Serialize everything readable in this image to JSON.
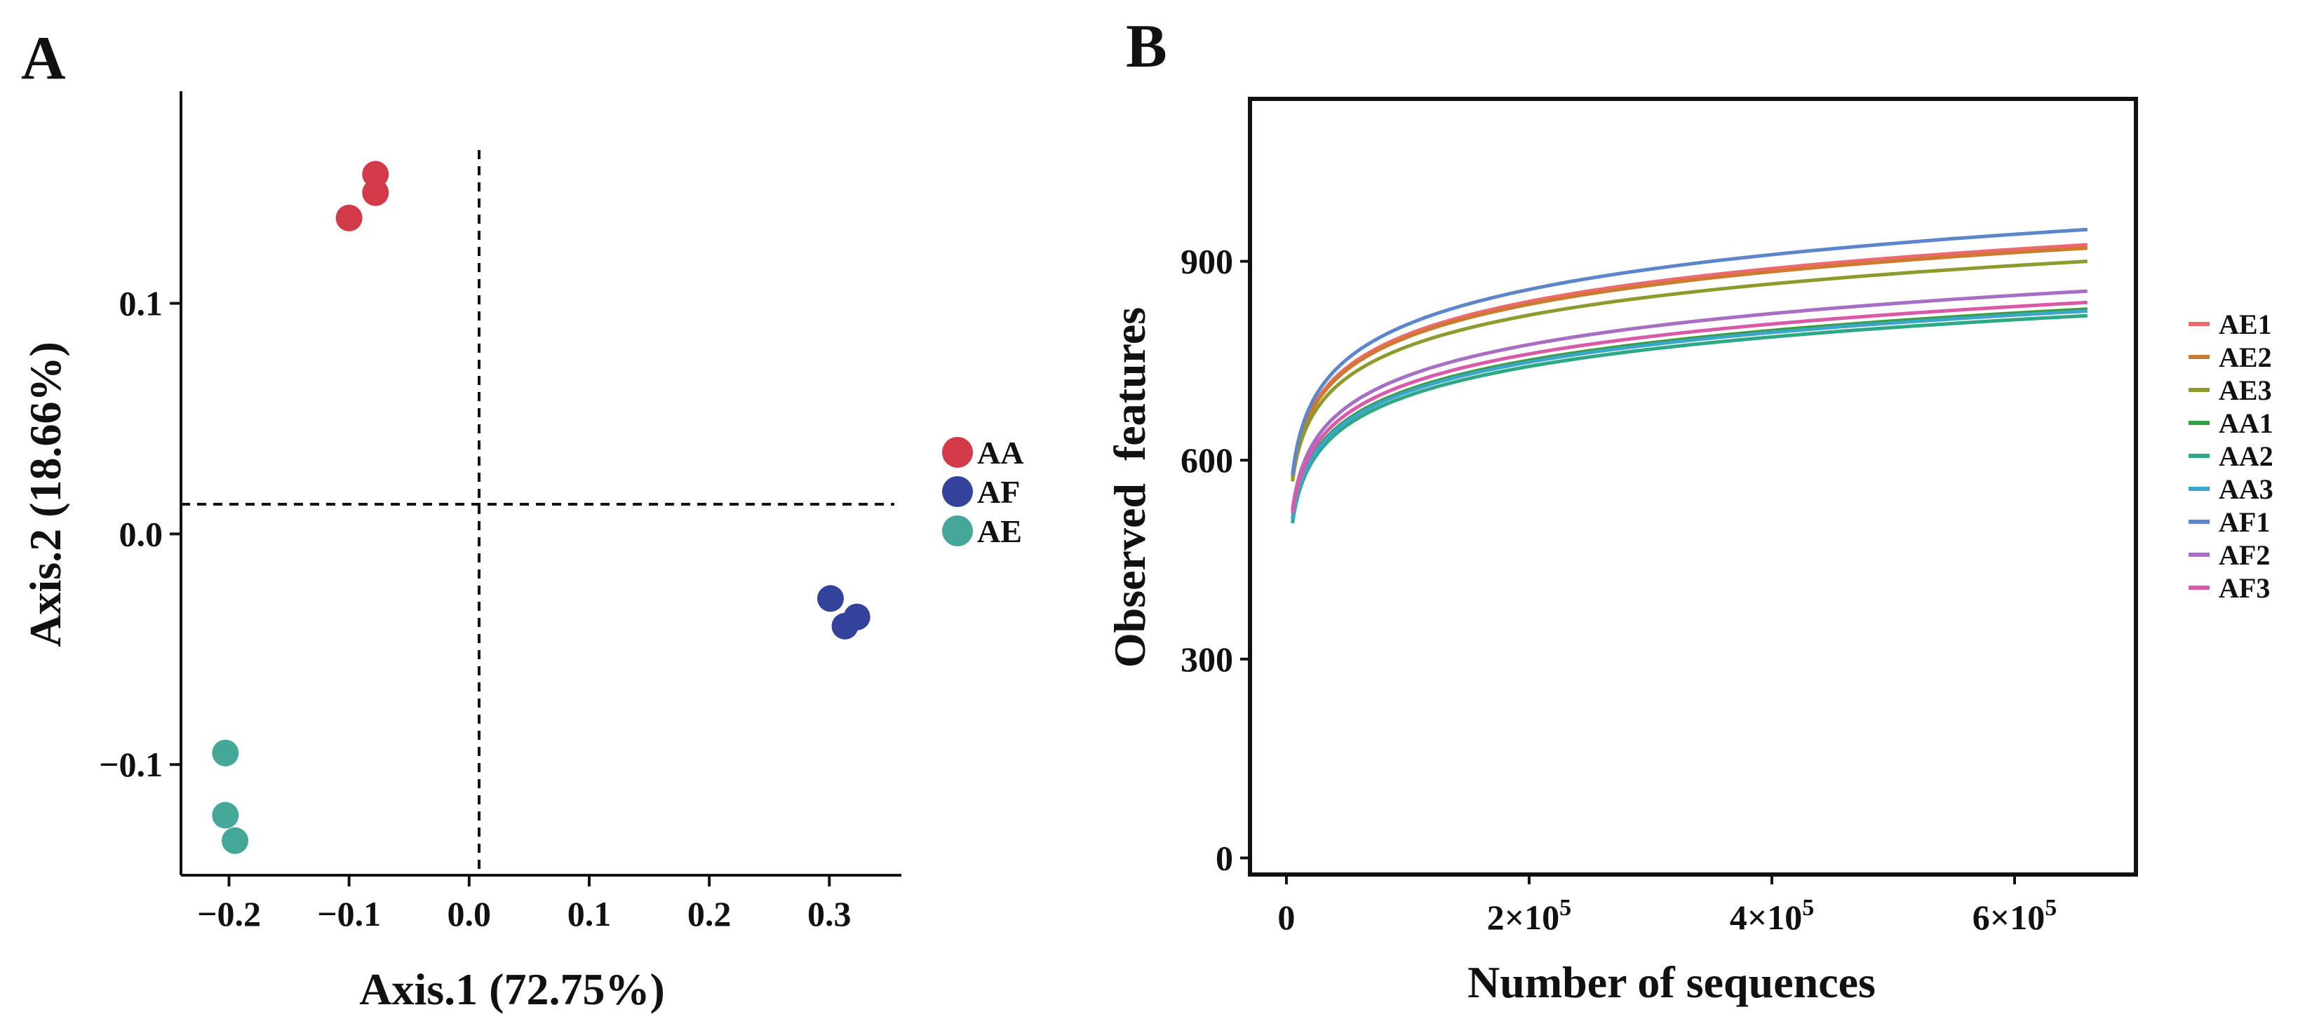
{
  "chart_data": [
    {
      "panel": "A",
      "type": "scatter",
      "xlabel": "Axis.1 (72.75%)",
      "ylabel": "Axis.2 (18.66%)",
      "xlim": [
        -0.24,
        0.36
      ],
      "ylim": [
        -0.148,
        0.192
      ],
      "xticks": [
        -0.2,
        -0.1,
        0.0,
        0.1,
        0.2,
        0.3
      ],
      "xtick_labels": [
        "−0.2",
        "−0.1",
        "0.0",
        "0.1",
        "0.2",
        "0.3"
      ],
      "yticks": [
        -0.1,
        0.0,
        0.1
      ],
      "ytick_labels": [
        "−0.1",
        "0.0",
        "0.1"
      ],
      "reference_lines": {
        "x": 0.0,
        "y": 0.0,
        "style": "dashed"
      },
      "grid": false,
      "legend_position": "right",
      "series": [
        {
          "name": "AA",
          "color": "#d23a4a",
          "points": [
            [
              -0.078,
              0.156
            ],
            [
              -0.078,
              0.148
            ],
            [
              -0.1,
              0.137
            ]
          ]
        },
        {
          "name": "AF",
          "color": "#33429a",
          "points": [
            [
              0.301,
              -0.028
            ],
            [
              0.313,
              -0.04
            ],
            [
              0.323,
              -0.036
            ]
          ]
        },
        {
          "name": "AE",
          "color": "#44a797",
          "points": [
            [
              -0.203,
              -0.095
            ],
            [
              -0.203,
              -0.122
            ],
            [
              -0.195,
              -0.133
            ]
          ]
        }
      ]
    },
    {
      "panel": "B",
      "type": "line",
      "xlabel": "Number of sequences",
      "ylabel": "Observed  features",
      "xlim": [
        -30000,
        700000
      ],
      "ylim": [
        -25,
        1145
      ],
      "xticks": [
        0,
        200000,
        400000,
        600000
      ],
      "xtick_labels": [
        {
          "base": "0",
          "exp": ""
        },
        {
          "base": "2×10",
          "exp": "5"
        },
        {
          "base": "4×10",
          "exp": "5"
        },
        {
          "base": "6×10",
          "exp": "5"
        }
      ],
      "yticks": [
        0,
        300,
        600,
        900
      ],
      "ytick_labels": [
        "0",
        "300",
        "600",
        "900"
      ],
      "grid": false,
      "legend_position": "right",
      "x_range": [
        5000,
        660000
      ],
      "series": [
        {
          "name": "AE1",
          "color": "#ec6a6f",
          "start": 575,
          "end": 925
        },
        {
          "name": "AE2",
          "color": "#cc7a2e",
          "start": 573,
          "end": 920
        },
        {
          "name": "AE3",
          "color": "#8e9a2e",
          "start": 568,
          "end": 900
        },
        {
          "name": "AA1",
          "color": "#3a9c43",
          "start": 512,
          "end": 828
        },
        {
          "name": "AA2",
          "color": "#2ea886",
          "start": 505,
          "end": 818
        },
        {
          "name": "AA3",
          "color": "#3aa6c8",
          "start": 510,
          "end": 825
        },
        {
          "name": "AF1",
          "color": "#5c86c9",
          "start": 578,
          "end": 948
        },
        {
          "name": "AF2",
          "color": "#a66fc4",
          "start": 525,
          "end": 855
        },
        {
          "name": "AF3",
          "color": "#d95aa8",
          "start": 520,
          "end": 838
        }
      ]
    }
  ]
}
